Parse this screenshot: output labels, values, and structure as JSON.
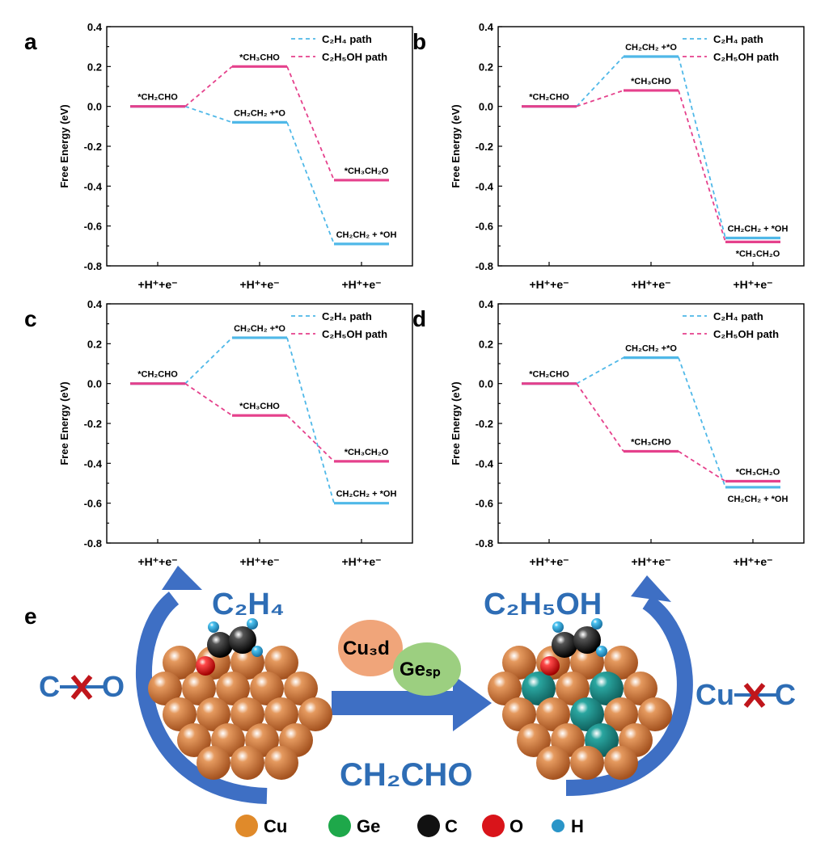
{
  "colors": {
    "c2h4": "#4fb8e8",
    "c2h5oh": "#e5418c",
    "arrow": "#3e6fc4",
    "cu": "#c8733a",
    "ge": "#1f8b88"
  },
  "chart_data": [
    {
      "panel": "a",
      "type": "energy-profile",
      "ylabel": "Free Energy (eV)",
      "ylim": [
        -0.8,
        0.4
      ],
      "yticks": [
        "0.4",
        "0.2",
        "0.0",
        "-0.2",
        "-0.4",
        "-0.6",
        "-0.8"
      ],
      "step_labels": [
        "+H⁺+e⁻",
        "+H⁺+e⁻",
        "+H⁺+e⁻"
      ],
      "legend": [
        "C₂H₄ path",
        "C₂H₅OH path"
      ],
      "series": [
        {
          "name": "C₂H₄ path",
          "values": [
            0.0,
            -0.08,
            -0.69
          ],
          "labels": [
            "*CH₂CHO",
            "CH₂CH₂ +*O",
            "CH₂CH₂ + *OH"
          ]
        },
        {
          "name": "C₂H₅OH path",
          "values": [
            0.0,
            0.2,
            -0.37
          ],
          "labels": [
            "*CH₂CHO",
            "*CH₃CHO",
            "*CH₃CH₂O"
          ]
        }
      ]
    },
    {
      "panel": "b",
      "type": "energy-profile",
      "ylabel": "Free Energy (eV)",
      "ylim": [
        -0.8,
        0.4
      ],
      "yticks": [
        "0.4",
        "0.2",
        "0.0",
        "-0.2",
        "-0.4",
        "-0.6",
        "-0.8"
      ],
      "step_labels": [
        "+H⁺+e⁻",
        "+H⁺+e⁻",
        "+H⁺+e⁻"
      ],
      "legend": [
        "C₂H₄ path",
        "C₂H₅OH path"
      ],
      "series": [
        {
          "name": "C₂H₄ path",
          "values": [
            0.0,
            0.25,
            -0.66
          ],
          "labels": [
            "*CH₂CHO",
            "CH₂CH₂ +*O",
            "CH₂CH₂ + *OH"
          ]
        },
        {
          "name": "C₂H₅OH path",
          "values": [
            0.0,
            0.08,
            -0.68
          ],
          "labels": [
            "*CH₂CHO",
            "*CH₃CHO",
            "*CH₃CH₂O"
          ]
        }
      ]
    },
    {
      "panel": "c",
      "type": "energy-profile",
      "ylabel": "Free Energy (eV)",
      "ylim": [
        -0.8,
        0.4
      ],
      "yticks": [
        "0.4",
        "0.2",
        "0.0",
        "-0.2",
        "-0.4",
        "-0.6",
        "-0.8"
      ],
      "step_labels": [
        "+H⁺+e⁻",
        "+H⁺+e⁻",
        "+H⁺+e⁻"
      ],
      "legend": [
        "C₂H₄ path",
        "C₂H₅OH path"
      ],
      "series": [
        {
          "name": "C₂H₄ path",
          "values": [
            0.0,
            0.23,
            -0.6
          ],
          "labels": [
            "*CH₂CHO",
            "CH₂CH₂ +*O",
            "CH₂CH₂ + *OH"
          ]
        },
        {
          "name": "C₂H₅OH path",
          "values": [
            0.0,
            -0.16,
            -0.39
          ],
          "labels": [
            "*CH₂CHO",
            "*CH₃CHO",
            "*CH₃CH₂O"
          ]
        }
      ]
    },
    {
      "panel": "d",
      "type": "energy-profile",
      "ylabel": "Free Energy (eV)",
      "ylim": [
        -0.8,
        0.4
      ],
      "yticks": [
        "0.4",
        "0.2",
        "0.0",
        "-0.2",
        "-0.4",
        "-0.6",
        "-0.8"
      ],
      "step_labels": [
        "+H⁺+e⁻",
        "+H⁺+e⁻",
        "+H⁺+e⁻"
      ],
      "legend": [
        "C₂H₄ path",
        "C₂H₅OH path"
      ],
      "series": [
        {
          "name": "C₂H₄ path",
          "values": [
            0.0,
            0.13,
            -0.52
          ],
          "labels": [
            "*CH₂CHO",
            "CH₂CH₂ +*O",
            "CH₂CH₂ + *OH"
          ]
        },
        {
          "name": "C₂H₅OH path",
          "values": [
            0.0,
            -0.34,
            -0.49
          ],
          "labels": [
            "*CH₂CHO",
            "*CH₃CHO",
            "*CH₃CH₂O"
          ]
        }
      ]
    }
  ],
  "panel_e": {
    "letter": "e",
    "c2h4": "C₂H₄",
    "c2h5oh": "C₂H₅OH",
    "ch2cho": "CH₂CHO",
    "co_left": "C",
    "co_right": "O",
    "cuc_left": "Cu",
    "cuc_right": "C",
    "cu3d": "Cu₃d",
    "gesp": "Geₛₚ",
    "legend": [
      "Cu",
      "Ge",
      "C",
      "O",
      "H"
    ]
  }
}
